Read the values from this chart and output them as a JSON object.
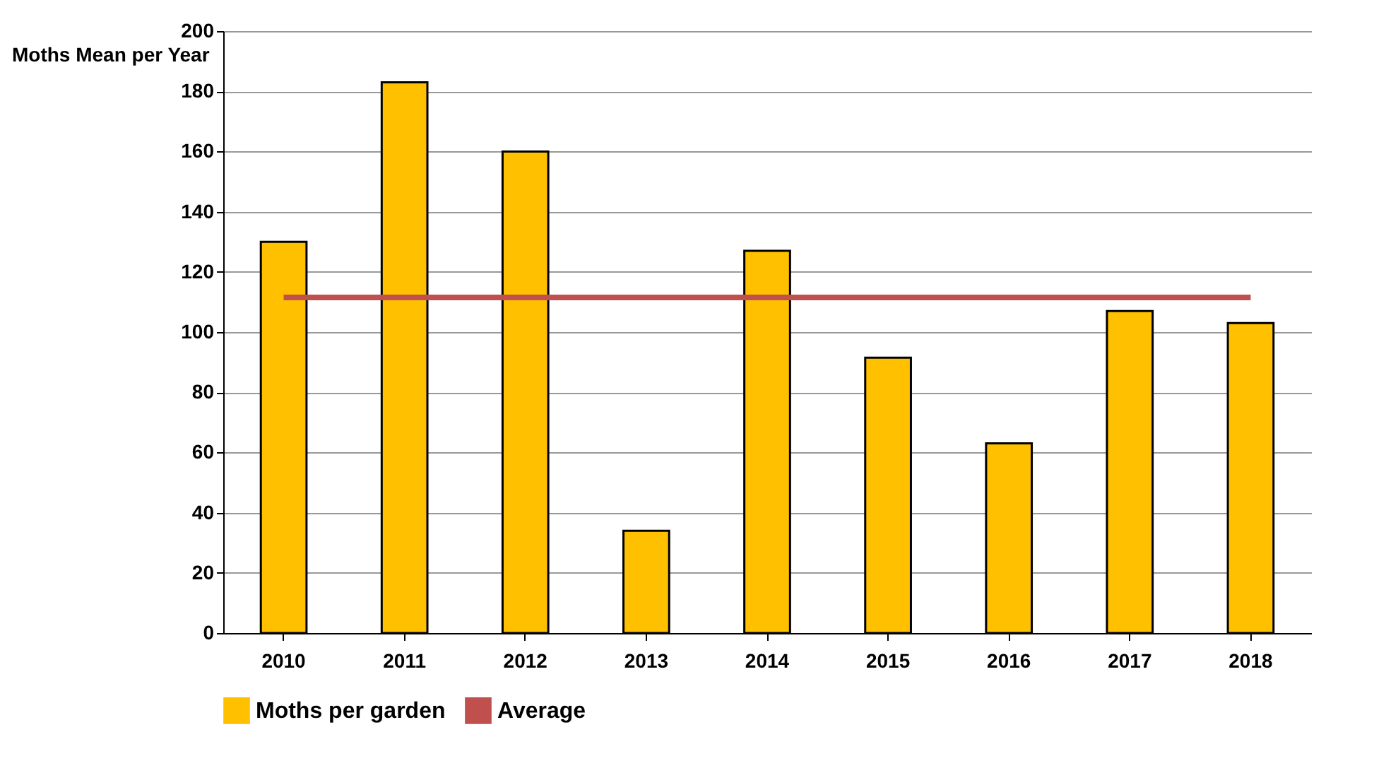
{
  "chart_data": {
    "type": "bar",
    "ylabel": "Moths Mean per Year",
    "categories": [
      "2010",
      "2011",
      "2012",
      "2013",
      "2014",
      "2015",
      "2016",
      "2017",
      "2018"
    ],
    "series": [
      {
        "name": "Moths per garden",
        "color": "#ffc000",
        "values": [
          130,
          183,
          160,
          34,
          127,
          91.5,
          63,
          107,
          103
        ]
      },
      {
        "name": "Average",
        "type": "line",
        "color": "#c0504d",
        "values": [
          111.5,
          111.5,
          111.5,
          111.5,
          111.5,
          111.5,
          111.5,
          111.5,
          111.5
        ]
      }
    ],
    "ylim": [
      0,
      200
    ],
    "yticks": [
      0,
      20,
      40,
      60,
      80,
      100,
      120,
      140,
      160,
      180,
      200
    ],
    "grid": "y",
    "legend": "bottom"
  }
}
